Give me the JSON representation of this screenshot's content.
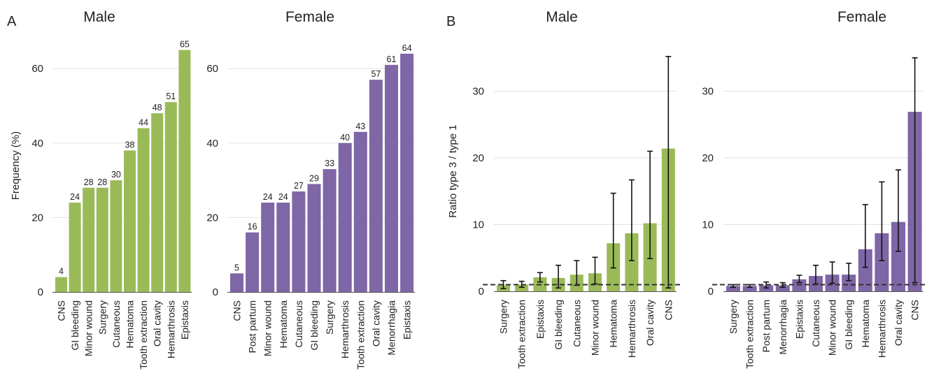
{
  "figure": {
    "panel_a_letter": "A",
    "panel_b_letter": "B"
  },
  "colors": {
    "male": "#9aba58",
    "female": "#7f66a6",
    "grid": "#e2e2e2",
    "axis": "#555555",
    "reference": "#333333"
  },
  "chart_data": [
    {
      "type": "bar",
      "panel": "A",
      "title": "Male",
      "ylabel": "Frequency (%)",
      "ylim": [
        0,
        66
      ],
      "yticks": [
        0,
        20,
        40,
        60
      ],
      "grid": true,
      "categories": [
        "CNS",
        "GI bleeding",
        "Minor wound",
        "Surgery",
        "Cutaneous",
        "Hematoma",
        "Tooth extraction",
        "Oral cavity",
        "Hemarthrosis",
        "Epistaxis"
      ],
      "values": [
        4,
        24,
        28,
        28,
        30,
        38,
        44,
        48,
        51,
        65
      ],
      "data_labels": [
        "4",
        "24",
        "28",
        "28",
        "30",
        "38",
        "44",
        "48",
        "51",
        "65"
      ]
    },
    {
      "type": "bar",
      "panel": "A",
      "title": "Female",
      "ylabel": "",
      "ylim": [
        0,
        66
      ],
      "yticks": [
        0,
        20,
        40,
        60
      ],
      "grid": true,
      "categories": [
        "CNS",
        "Post partum",
        "Minor wound",
        "Hematoma",
        "Cutaneous",
        "GI bleeding",
        "Surgery",
        "Hemarthrosis",
        "Tooth extraction",
        "Oral cavity",
        "Menorrhagia",
        "Epistaxis"
      ],
      "values": [
        5,
        16,
        24,
        24,
        27,
        29,
        33,
        40,
        43,
        57,
        61,
        64
      ],
      "data_labels": [
        "5",
        "16",
        "24",
        "24",
        "27",
        "29",
        "33",
        "40",
        "43",
        "57",
        "61",
        "64"
      ]
    },
    {
      "type": "bar",
      "panel": "B",
      "title": "Male",
      "ylabel": "Ratio type 3 / type 1",
      "ylim": [
        0,
        36
      ],
      "yticks": [
        0,
        10,
        20,
        30
      ],
      "grid": true,
      "reference_line": 1,
      "categories": [
        "Surgery",
        "Tooth extraction",
        "Epistaxis",
        "GI bleeding",
        "Cutaneous",
        "Minor wound",
        "Hematoma",
        "Hemarthrosis",
        "Oral cavity",
        "CNS"
      ],
      "values": [
        0.9,
        1.0,
        2.1,
        2.0,
        2.5,
        2.7,
        7.2,
        8.7,
        10.2,
        21.4
      ],
      "error_low": [
        0.4,
        0.6,
        1.4,
        0.5,
        0.9,
        1.1,
        3.5,
        4.6,
        4.9,
        0.5
      ],
      "error_high": [
        1.6,
        1.5,
        2.8,
        3.9,
        4.6,
        5.1,
        14.7,
        16.7,
        21.0,
        35.2
      ]
    },
    {
      "type": "bar",
      "panel": "B",
      "title": "Female",
      "ylabel": "",
      "ylim": [
        0,
        36
      ],
      "yticks": [
        0,
        10,
        20,
        30
      ],
      "grid": true,
      "reference_line": 1,
      "categories": [
        "Surgery",
        "Tooth extraction",
        "Post partum",
        "Menorrhagia",
        "Epistaxis",
        "Cutaneous",
        "Minor wound",
        "GI bleeding",
        "Hematoma",
        "Hemarthrosis",
        "Oral cavity",
        "CNS"
      ],
      "values": [
        0.8,
        0.8,
        0.9,
        0.9,
        1.8,
        2.3,
        2.5,
        2.5,
        6.3,
        8.7,
        10.4,
        26.9
      ],
      "error_low": [
        0.6,
        0.6,
        0.5,
        0.6,
        1.3,
        1.1,
        1.2,
        1.6,
        3.6,
        4.6,
        6.0,
        1.3
      ],
      "error_high": [
        1.0,
        1.0,
        1.4,
        1.3,
        2.4,
        3.9,
        4.4,
        4.2,
        13.0,
        16.4,
        18.2,
        35.0
      ]
    }
  ]
}
